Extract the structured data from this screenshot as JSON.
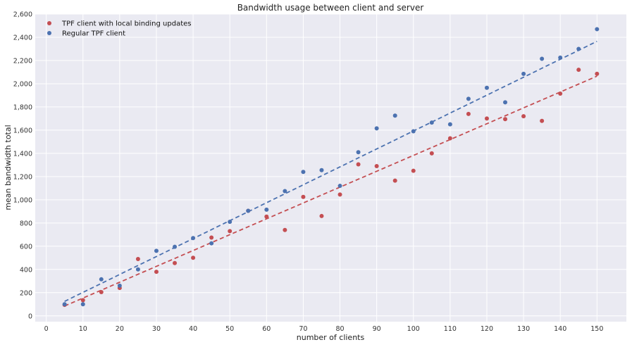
{
  "chart_data": {
    "type": "scatter",
    "title": "Bandwidth usage between client and server",
    "xlabel": "number of clients",
    "ylabel": "mean bandwidth total",
    "xlim": [
      -3,
      158
    ],
    "ylim": [
      -50,
      2600
    ],
    "xticks": [
      0,
      10,
      20,
      30,
      40,
      50,
      60,
      70,
      80,
      90,
      100,
      110,
      120,
      130,
      140,
      150
    ],
    "xtick_labels": [
      "0",
      "10",
      "20",
      "30",
      "40",
      "50",
      "60",
      "70",
      "80",
      "90",
      "100",
      "110",
      "120",
      "130",
      "140",
      "150"
    ],
    "yticks": [
      0,
      200,
      400,
      600,
      800,
      1000,
      1200,
      1400,
      1600,
      1800,
      2000,
      2200,
      2400,
      2600
    ],
    "ytick_labels": [
      "0",
      "200",
      "400",
      "600",
      "800",
      "1,000",
      "1,200",
      "1,400",
      "1,600",
      "1,800",
      "2,000",
      "2,200",
      "2,400",
      "2,600"
    ],
    "grid": true,
    "legend_position": "top-left",
    "series": [
      {
        "name": "TPF client with local binding updates",
        "color": "#c44e52",
        "x": [
          5,
          10,
          15,
          20,
          25,
          30,
          35,
          40,
          45,
          50,
          55,
          60,
          65,
          70,
          75,
          80,
          85,
          90,
          95,
          100,
          105,
          110,
          115,
          120,
          125,
          130,
          135,
          140,
          145,
          150
        ],
        "y": [
          95,
          135,
          205,
          240,
          490,
          380,
          455,
          500,
          675,
          730,
          905,
          855,
          740,
          1025,
          860,
          1045,
          1305,
          1290,
          1165,
          1250,
          1400,
          1530,
          1740,
          1700,
          1695,
          1720,
          1680,
          1915,
          2120,
          2085
        ],
        "fit": [
          [
            5,
            85
          ],
          [
            150,
            2065
          ]
        ]
      },
      {
        "name": "Regular TPF client",
        "color": "#4c72b0",
        "x": [
          5,
          10,
          15,
          20,
          25,
          30,
          35,
          40,
          45,
          50,
          55,
          60,
          65,
          70,
          75,
          80,
          85,
          90,
          95,
          100,
          105,
          110,
          115,
          120,
          125,
          130,
          135,
          140,
          145,
          150
        ],
        "y": [
          100,
          100,
          315,
          260,
          400,
          560,
          595,
          670,
          625,
          810,
          905,
          915,
          1075,
          1240,
          1255,
          1120,
          1410,
          1615,
          1725,
          1590,
          1665,
          1650,
          1870,
          1965,
          1840,
          2085,
          2215,
          2225,
          2300,
          2470
        ],
        "fit": [
          [
            5,
            125
          ],
          [
            150,
            2365
          ]
        ]
      }
    ]
  }
}
